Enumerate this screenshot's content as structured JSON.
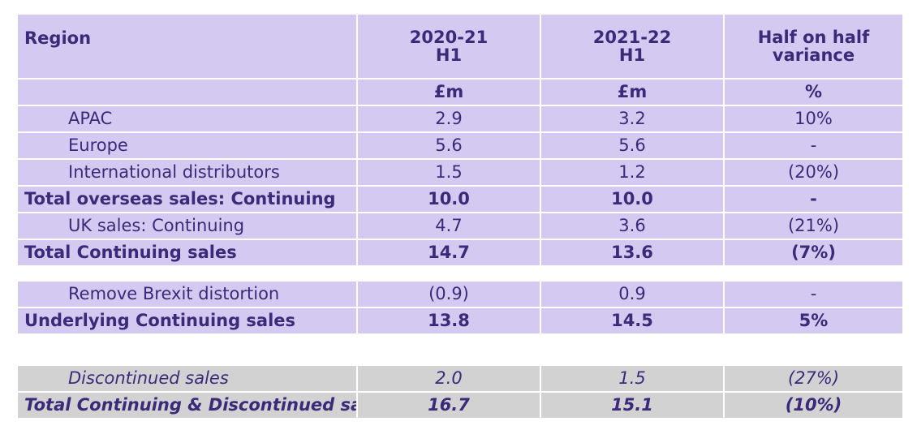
{
  "header": {
    "region": "Region",
    "col1": [
      "2020-21",
      "H1"
    ],
    "col2": [
      "2021-22",
      "H1"
    ],
    "col3": [
      "Half on half",
      "variance"
    ],
    "units": [
      "",
      "£m",
      "£m",
      "%"
    ]
  },
  "rows": [
    {
      "label": "APAC",
      "v1": "2.9",
      "v2": "3.2",
      "v3": "10%"
    },
    {
      "label": "Europe",
      "v1": "5.6",
      "v2": "5.6",
      "v3": "-"
    },
    {
      "label": "International distributors",
      "v1": "1.5",
      "v2": "1.2",
      "v3": "(20%)"
    },
    {
      "label": "Total overseas sales: Continuing",
      "v1": "10.0",
      "v2": "10.0",
      "v3": "-"
    },
    {
      "label": "UK sales: Continuing",
      "v1": "4.7",
      "v2": "3.6",
      "v3": "(21%)"
    },
    {
      "label": "Total Continuing sales",
      "v1": "14.7",
      "v2": "13.6",
      "v3": "(7%)"
    }
  ],
  "brexit_rows": [
    {
      "label": "Remove Brexit distortion",
      "v1": "(0.9)",
      "v2": "0.9",
      "v3": "-"
    },
    {
      "label": "Underlying Continuing sales",
      "v1": "13.8",
      "v2": "14.5",
      "v3": "5%"
    }
  ],
  "discontinued_rows": [
    {
      "label": "Discontinued sales",
      "v1": "2.0",
      "v2": "1.5",
      "v3": "(27%)"
    },
    {
      "label": "Total Continuing & Discontinued sales",
      "v1": "16.7",
      "v2": "15.1",
      "v3": "(10%)"
    }
  ],
  "colors": {
    "purple_fill": "#d4c9f0",
    "grey_fill": "#d2d2d2",
    "text": "#3b2a7a"
  }
}
